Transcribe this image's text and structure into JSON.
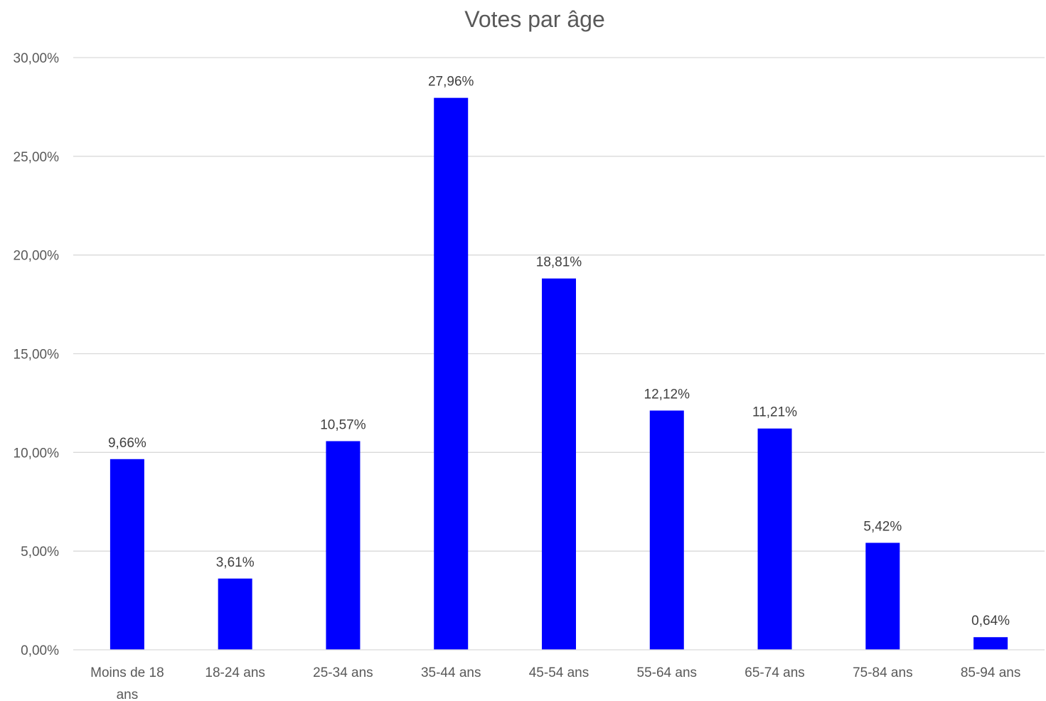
{
  "chart_data": {
    "type": "bar",
    "title": "Votes par âge",
    "categories": [
      "Moins de 18 ans",
      "18-24 ans",
      "25-34 ans",
      "35-44 ans",
      "45-54 ans",
      "55-64 ans",
      "65-74 ans",
      "75-84 ans",
      "85-94 ans"
    ],
    "values": [
      9.66,
      3.61,
      10.57,
      27.96,
      18.81,
      12.12,
      11.21,
      5.42,
      0.64
    ],
    "data_labels": [
      "9,66%",
      "3,61%",
      "10,57%",
      "27,96%",
      "18,81%",
      "12,12%",
      "11,21%",
      "5,42%",
      "0,64%"
    ],
    "ylim": [
      0,
      30
    ],
    "yticks": [
      0,
      5,
      10,
      15,
      20,
      25,
      30
    ],
    "ytick_labels": [
      "0,00%",
      "5,00%",
      "10,00%",
      "15,00%",
      "20,00%",
      "25,00%",
      "30,00%"
    ],
    "xlabel": "",
    "ylabel": "",
    "grid": true,
    "legend": "none",
    "bar_color": "#0000FF"
  }
}
